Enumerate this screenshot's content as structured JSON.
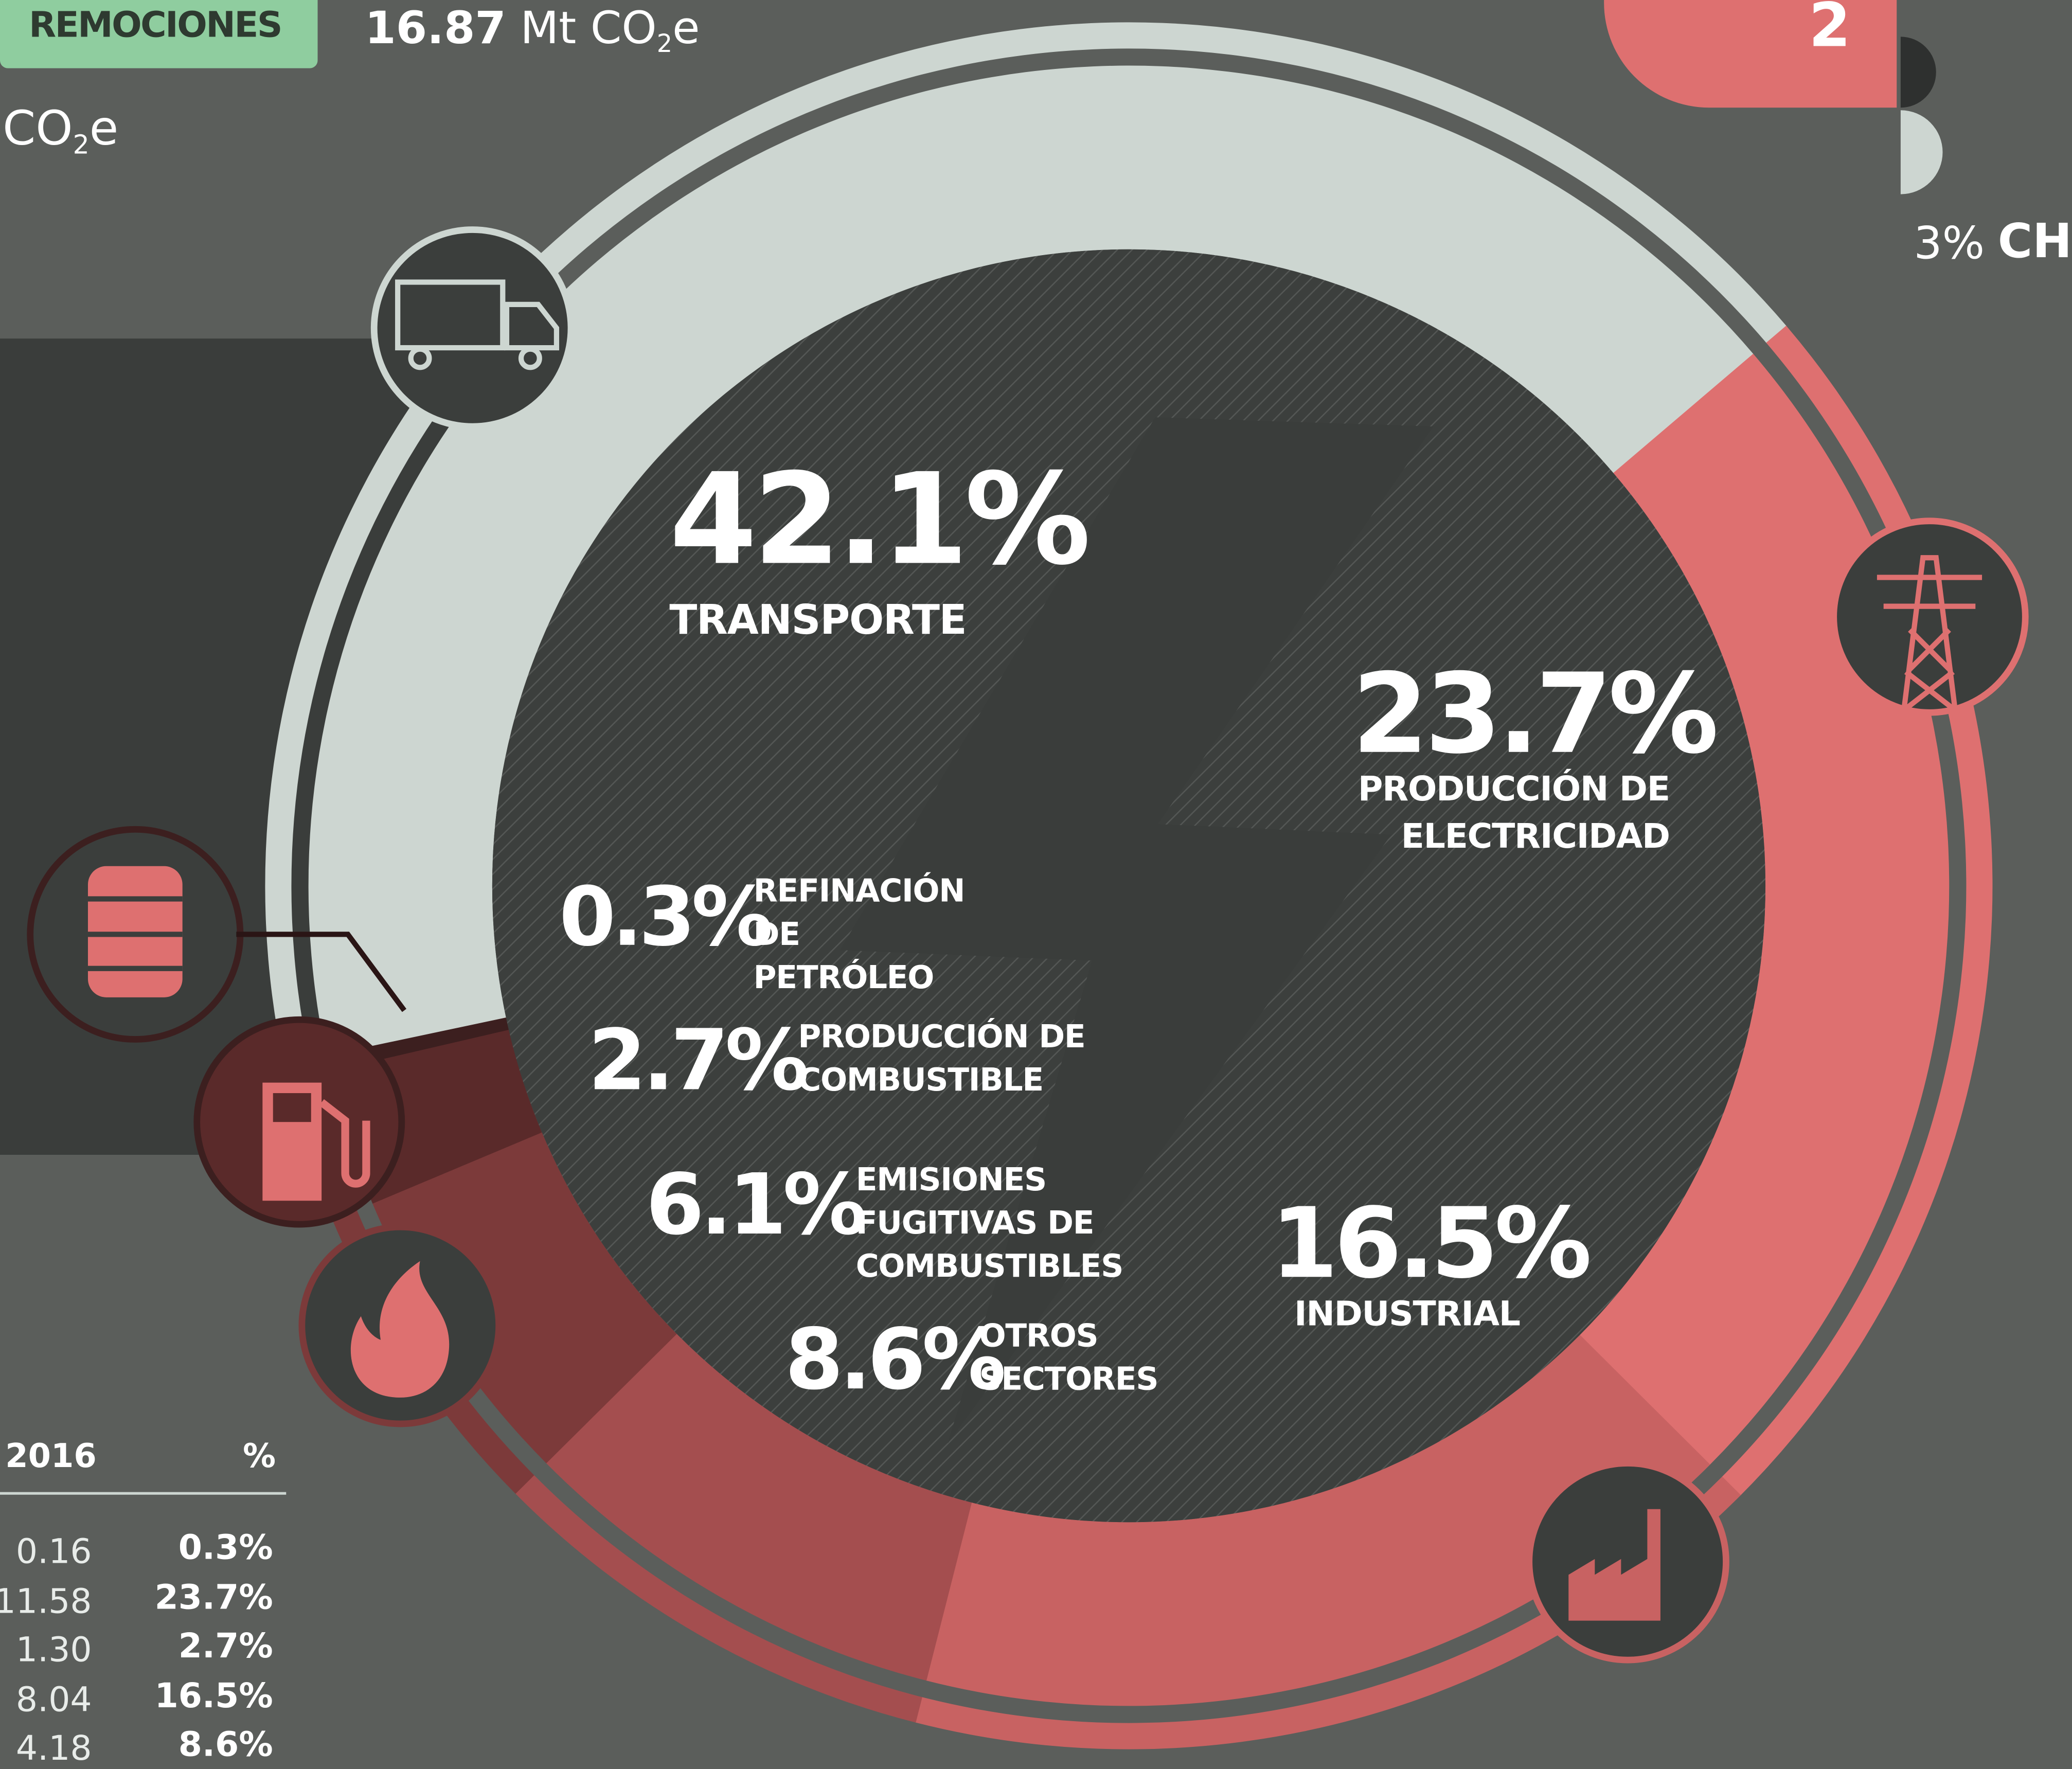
{
  "header": {
    "badge": "REMOCIONES",
    "value": "16.87",
    "unit": "Mt CO",
    "unit_sub": "2",
    "unit_end": "e"
  },
  "left_unit": {
    "text": "CO",
    "sub": "2",
    "end": "e"
  },
  "gas_panel": {
    "sub": "2",
    "pct": "3%",
    "gas": "CH"
  },
  "chart_data": {
    "type": "donut",
    "categories": [
      "TRANSPORTE",
      "PRODUCCIÓN DE ELECTRICIDAD",
      "INDUSTRIAL",
      "OTROS SECTORES",
      "EMISIONES FUGITIVAS DE COMBUSTIBLES",
      "PRODUCCIÓN DE COMBUSTIBLE",
      "REFINACIÓN DE PETRÓLEO"
    ],
    "values": [
      42.1,
      23.7,
      16.5,
      8.6,
      6.1,
      2.7,
      0.3
    ],
    "value_labels": [
      "42.1%",
      "23.7%",
      "16.5%",
      "8.6%",
      "6.1%",
      "2.7%",
      "0.3%"
    ],
    "colors": [
      "#cdd6d1",
      "#de7070",
      "#c86262",
      "#a44e4f",
      "#7c3a3a",
      "#5a2a2a",
      "#3c1f1f"
    ]
  },
  "table": {
    "headers": [
      "2016",
      "%"
    ],
    "rows": [
      [
        "0.16",
        "0.3%"
      ],
      [
        "11.58",
        "23.7%"
      ],
      [
        "1.30",
        "2.7%"
      ],
      [
        "8.04",
        "16.5%"
      ],
      [
        "4.18",
        "8.6%"
      ]
    ]
  }
}
